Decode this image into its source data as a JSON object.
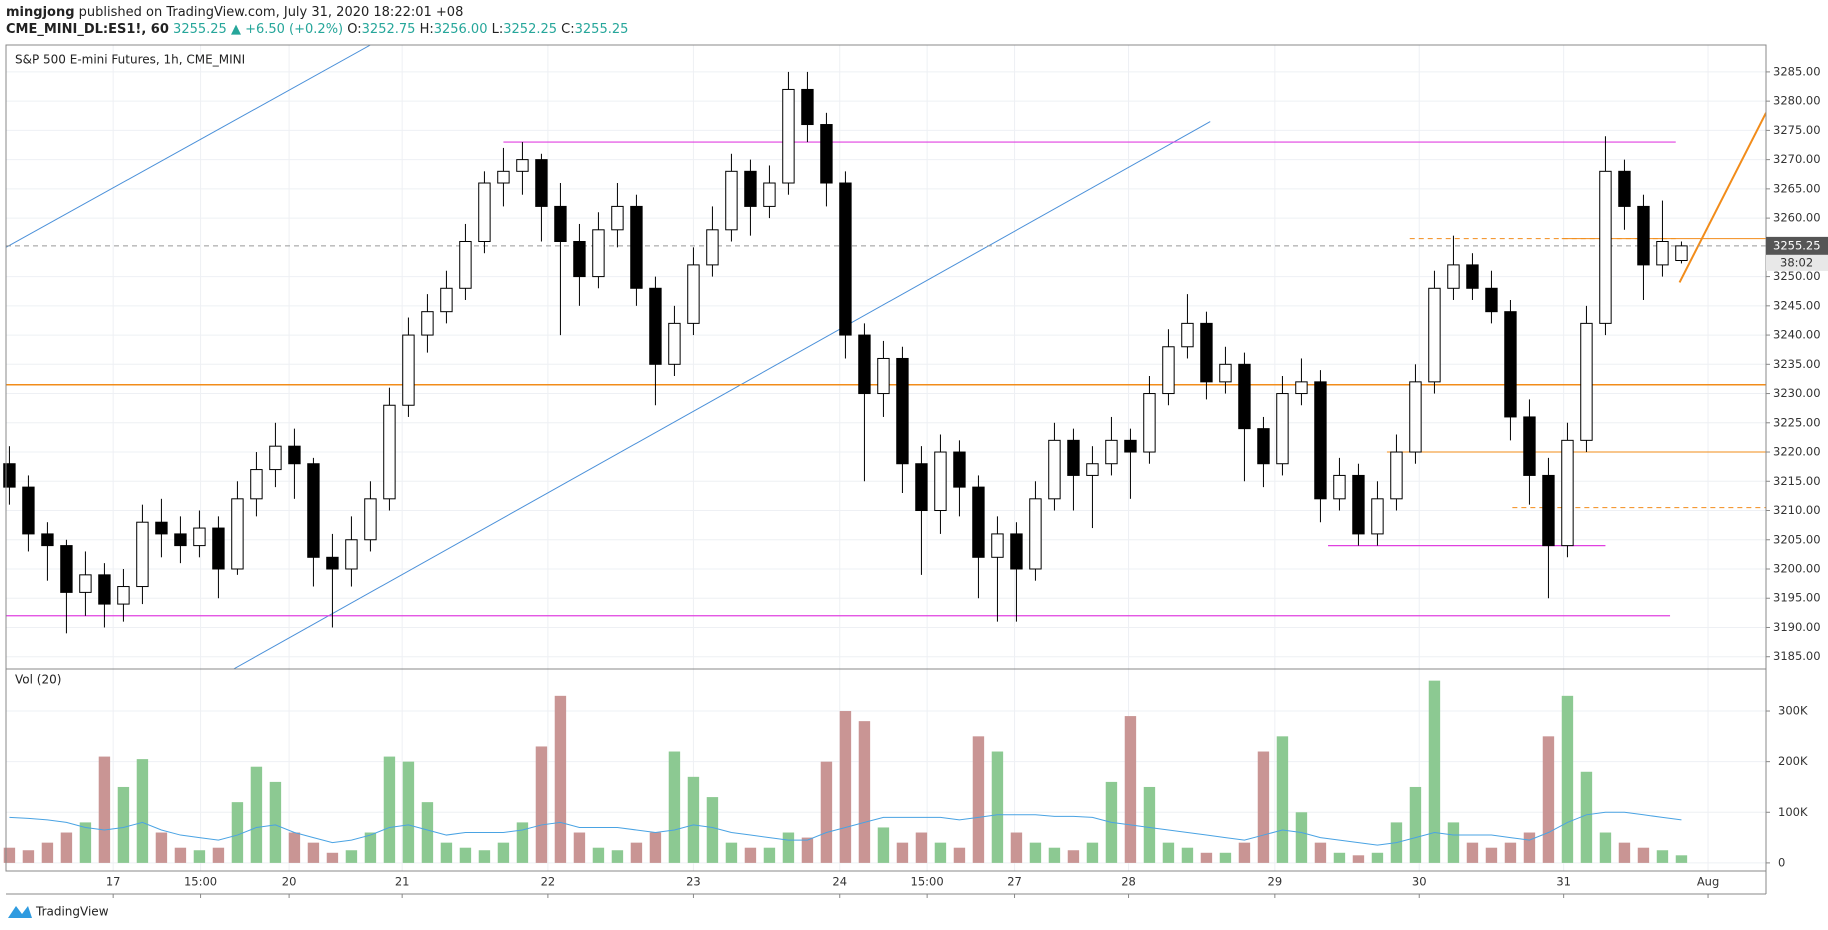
{
  "header": {
    "author": "mingjong",
    "published": "published on TradingView.com, July 31, 2020 18:22:01 +08",
    "symbol": "CME_MINI_DL:ES1!, 60",
    "last": "3255.25",
    "change": "▲ +6.50 (+0.2%)",
    "ohlc": [
      {
        "label": "O:",
        "value": "3252.75"
      },
      {
        "label": "H:",
        "value": "3256.00"
      },
      {
        "label": "L:",
        "value": "3252.25"
      },
      {
        "label": "C:",
        "value": "3255.25"
      }
    ]
  },
  "footer": {
    "brand": "TradingView"
  },
  "chart_data": {
    "type": "candlestick",
    "title": "S&P 500 E-mini Futures, 1h, CME_MINI",
    "up_color": "#ffffff",
    "down_color": "#000000",
    "volume_label": "Vol (20)",
    "volume_up_color": "#8cc992",
    "volume_down_color": "#c99594",
    "volume_ma_color": "#4aa3e3",
    "grid": true,
    "xlim": [
      -0.18,
      92.45
    ],
    "xticks": [
      {
        "value": 5.46,
        "label": "17"
      },
      {
        "value": 10.06,
        "label": "15:00"
      },
      {
        "value": 14.72,
        "label": "20"
      },
      {
        "value": 20.67,
        "label": "21"
      },
      {
        "value": 28.34,
        "label": "22"
      },
      {
        "value": 36.0,
        "label": "23"
      },
      {
        "value": 43.7,
        "label": "24"
      },
      {
        "value": 48.3,
        "label": "15:00"
      },
      {
        "value": 52.9,
        "label": "27"
      },
      {
        "value": 58.9,
        "label": "28"
      },
      {
        "value": 66.6,
        "label": "29"
      },
      {
        "value": 74.2,
        "label": "30"
      },
      {
        "value": 81.8,
        "label": "31"
      },
      {
        "value": 89.4,
        "label": "Aug"
      }
    ],
    "ylim": [
      3182.9,
      3289.6
    ],
    "yticks": [
      {
        "value": 3185,
        "label": "3185.00"
      },
      {
        "value": 3190,
        "label": "3190.00"
      },
      {
        "value": 3195,
        "label": "3195.00"
      },
      {
        "value": 3200,
        "label": "3200.00"
      },
      {
        "value": 3205,
        "label": "3205.00"
      },
      {
        "value": 3210,
        "label": "3210.00"
      },
      {
        "value": 3215,
        "label": "3215.00"
      },
      {
        "value": 3220,
        "label": "3220.00"
      },
      {
        "value": 3225,
        "label": "3225.00"
      },
      {
        "value": 3230,
        "label": "3230.00"
      },
      {
        "value": 3235,
        "label": "3235.00"
      },
      {
        "value": 3240,
        "label": "3240.00"
      },
      {
        "value": 3245,
        "label": "3245.00"
      },
      {
        "value": 3250,
        "label": "3250.00"
      },
      {
        "value": 3260,
        "label": "3260.00"
      },
      {
        "value": 3265,
        "label": "3265.00"
      },
      {
        "value": 3270,
        "label": "3270.00"
      },
      {
        "value": 3275,
        "label": "3275.00"
      },
      {
        "value": 3280,
        "label": "3280.00"
      },
      {
        "value": 3285,
        "label": "3285.00"
      }
    ],
    "current_price": {
      "value": 3255.25,
      "label": "3255.25",
      "countdown": "38:02",
      "color": "#555555"
    },
    "vol_ylim": [
      -16000,
      383000
    ],
    "vol_ticks": [
      0,
      {
        "value": 100000,
        "label": "100K"
      },
      {
        "value": 200000,
        "label": "200K"
      },
      {
        "value": 300000,
        "label": "300K"
      }
    ],
    "candles": [
      [
        3218,
        3221,
        3211,
        3214
      ],
      [
        3214,
        3216,
        3203,
        3206
      ],
      [
        3206,
        3208,
        3198,
        3204
      ],
      [
        3204,
        3205,
        3189,
        3196
      ],
      [
        3196,
        3203,
        3192,
        3199
      ],
      [
        3199,
        3201,
        3190,
        3194
      ],
      [
        3194,
        3200,
        3191,
        3197
      ],
      [
        3197,
        3211,
        3194,
        3208
      ],
      [
        3208,
        3212,
        3202,
        3206
      ],
      [
        3206,
        3209,
        3201,
        3204
      ],
      [
        3204,
        3210,
        3202,
        3207
      ],
      [
        3207,
        3209,
        3195,
        3200
      ],
      [
        3200,
        3215,
        3199,
        3212
      ],
      [
        3212,
        3220,
        3209,
        3217
      ],
      [
        3217,
        3225,
        3214,
        3221
      ],
      [
        3221,
        3224,
        3212,
        3218
      ],
      [
        3218,
        3219,
        3197,
        3202
      ],
      [
        3202,
        3206,
        3190,
        3200
      ],
      [
        3200,
        3209,
        3197,
        3205
      ],
      [
        3205,
        3215,
        3203,
        3212
      ],
      [
        3212,
        3231,
        3210,
        3228
      ],
      [
        3228,
        3243,
        3226,
        3240
      ],
      [
        3240,
        3247,
        3237,
        3244
      ],
      [
        3244,
        3251,
        3242,
        3248
      ],
      [
        3248,
        3259,
        3246,
        3256
      ],
      [
        3256,
        3268,
        3254,
        3266
      ],
      [
        3266,
        3272,
        3262,
        3268
      ],
      [
        3268,
        3273,
        3264,
        3270
      ],
      [
        3270,
        3271,
        3256,
        3262
      ],
      [
        3262,
        3266,
        3240,
        3256
      ],
      [
        3256,
        3259,
        3245,
        3250
      ],
      [
        3250,
        3261,
        3248,
        3258
      ],
      [
        3258,
        3266,
        3255,
        3262
      ],
      [
        3262,
        3264,
        3245,
        3248
      ],
      [
        3248,
        3250,
        3228,
        3235
      ],
      [
        3235,
        3245,
        3233,
        3242
      ],
      [
        3242,
        3255,
        3240,
        3252
      ],
      [
        3252,
        3262,
        3250,
        3258
      ],
      [
        3258,
        3271,
        3256,
        3268
      ],
      [
        3268,
        3270,
        3257,
        3262
      ],
      [
        3262,
        3269,
        3260,
        3266
      ],
      [
        3266,
        3285,
        3264,
        3282
      ],
      [
        3282,
        3285,
        3273,
        3276
      ],
      [
        3276,
        3278,
        3262,
        3266
      ],
      [
        3266,
        3268,
        3236,
        3240
      ],
      [
        3240,
        3242,
        3215,
        3230
      ],
      [
        3230,
        3239,
        3226,
        3236
      ],
      [
        3236,
        3238,
        3213,
        3218
      ],
      [
        3218,
        3221,
        3199,
        3210
      ],
      [
        3210,
        3223,
        3206,
        3220
      ],
      [
        3220,
        3222,
        3209,
        3214
      ],
      [
        3214,
        3216,
        3195,
        3202
      ],
      [
        3202,
        3209,
        3191,
        3206
      ],
      [
        3206,
        3208,
        3191,
        3200
      ],
      [
        3200,
        3215,
        3198,
        3212
      ],
      [
        3212,
        3225,
        3210,
        3222
      ],
      [
        3222,
        3224,
        3210,
        3216
      ],
      [
        3216,
        3221,
        3207,
        3218
      ],
      [
        3218,
        3226,
        3216,
        3222
      ],
      [
        3222,
        3224,
        3212,
        3220
      ],
      [
        3220,
        3233,
        3218,
        3230
      ],
      [
        3230,
        3241,
        3228,
        3238
      ],
      [
        3238,
        3247,
        3236,
        3242
      ],
      [
        3242,
        3244,
        3229,
        3232
      ],
      [
        3232,
        3238,
        3230,
        3235
      ],
      [
        3235,
        3237,
        3215,
        3224
      ],
      [
        3224,
        3226,
        3214,
        3218
      ],
      [
        3218,
        3233,
        3216,
        3230
      ],
      [
        3230,
        3236,
        3228,
        3232
      ],
      [
        3232,
        3234,
        3208,
        3212
      ],
      [
        3212,
        3219,
        3210,
        3216
      ],
      [
        3216,
        3218,
        3204,
        3206
      ],
      [
        3206,
        3215,
        3204,
        3212
      ],
      [
        3212,
        3223,
        3210,
        3220
      ],
      [
        3220,
        3235,
        3218,
        3232
      ],
      [
        3232,
        3251,
        3230,
        3248
      ],
      [
        3248,
        3257,
        3246,
        3252
      ],
      [
        3252,
        3254,
        3246,
        3248
      ],
      [
        3248,
        3251,
        3242,
        3244
      ],
      [
        3244,
        3246,
        3222,
        3226
      ],
      [
        3226,
        3229,
        3211,
        3216
      ],
      [
        3216,
        3219,
        3195,
        3204
      ],
      [
        3204,
        3225,
        3202,
        3222
      ],
      [
        3222,
        3245,
        3220,
        3242
      ],
      [
        3242,
        3274,
        3240,
        3268
      ],
      [
        3268,
        3270,
        3258,
        3262
      ],
      [
        3262,
        3264,
        3246,
        3252
      ],
      [
        3252,
        3263,
        3250,
        3256
      ],
      [
        3252.75,
        3256,
        3252.25,
        3255.25
      ]
    ],
    "volumes": [
      30000,
      25000,
      40000,
      60000,
      80000,
      210000,
      150000,
      205000,
      60000,
      30000,
      25000,
      30000,
      120000,
      190000,
      160000,
      60000,
      40000,
      20000,
      25000,
      60000,
      210000,
      200000,
      120000,
      40000,
      30000,
      25000,
      40000,
      80000,
      230000,
      330000,
      60000,
      30000,
      25000,
      40000,
      60000,
      220000,
      170000,
      130000,
      40000,
      30000,
      30000,
      60000,
      50000,
      200000,
      300000,
      280000,
      70000,
      40000,
      60000,
      40000,
      30000,
      250000,
      220000,
      60000,
      40000,
      30000,
      25000,
      40000,
      160000,
      290000,
      150000,
      40000,
      30000,
      20000,
      20000,
      40000,
      220000,
      250000,
      100000,
      40000,
      20000,
      15000,
      20000,
      80000,
      150000,
      360000,
      80000,
      40000,
      30000,
      40000,
      60000,
      250000,
      330000,
      180000,
      60000,
      40000,
      30000,
      25000,
      15000
    ],
    "volume_ma": [
      90000,
      88000,
      85000,
      80000,
      70000,
      65000,
      70000,
      80000,
      65000,
      55000,
      50000,
      45000,
      55000,
      70000,
      75000,
      60000,
      50000,
      40000,
      45000,
      55000,
      70000,
      75000,
      65000,
      55000,
      60000,
      60000,
      60000,
      65000,
      75000,
      80000,
      70000,
      70000,
      70000,
      65000,
      60000,
      65000,
      75000,
      70000,
      60000,
      55000,
      50000,
      45000,
      45000,
      60000,
      70000,
      80000,
      90000,
      90000,
      90000,
      90000,
      85000,
      90000,
      95000,
      95000,
      95000,
      92000,
      92000,
      90000,
      80000,
      75000,
      70000,
      65000,
      60000,
      55000,
      50000,
      45000,
      55000,
      65000,
      60000,
      50000,
      45000,
      40000,
      35000,
      40000,
      50000,
      60000,
      55000,
      55000,
      55000,
      50000,
      45000,
      60000,
      80000,
      95000,
      100000,
      100000,
      95000,
      90000,
      85000
    ],
    "drawings": [
      {
        "x": [
          -0.18,
          19.0
        ],
        "y": [
          3255.0,
          3289.6
        ],
        "color": "#4a90d9",
        "width": 1,
        "dash": false
      },
      {
        "x": [
          11.8,
          63.2
        ],
        "y": [
          3182.9,
          3276.5
        ],
        "color": "#4a90d9",
        "width": 1,
        "dash": false
      },
      {
        "x": [
          -0.18,
          92.45
        ],
        "y": [
          3231.5,
          3231.5
        ],
        "color": "#f28c1a",
        "width": 1.5,
        "dash": false
      },
      {
        "x": [
          26.0,
          87.7
        ],
        "y": [
          3273,
          3273
        ],
        "color": "#e040e0",
        "width": 1.2,
        "dash": false
      },
      {
        "x": [
          -0.18,
          87.4
        ],
        "y": [
          3192,
          3192
        ],
        "color": "#e040e0",
        "width": 1.2,
        "dash": false
      },
      {
        "x": [
          69.4,
          84.0
        ],
        "y": [
          3204,
          3204
        ],
        "color": "#e040e0",
        "width": 1.2,
        "dash": false
      },
      {
        "x": [
          72.5,
          92.45
        ],
        "y": [
          3220,
          3220
        ],
        "color": "#f28c1a",
        "width": 1,
        "dash": false
      },
      {
        "x": [
          79.1,
          92.45
        ],
        "y": [
          3210.5,
          3210.5
        ],
        "color": "#f28c1a",
        "width": 1,
        "dash": true
      },
      {
        "x": [
          73.7,
          87.9
        ],
        "y": [
          3256.5,
          3256.5
        ],
        "color": "#f28c1a",
        "width": 1,
        "dash": true
      },
      {
        "x": [
          81.7,
          92.45
        ],
        "y": [
          3256.5,
          3256.5
        ],
        "color": "#f28c1a",
        "width": 1,
        "dash": false
      },
      {
        "x": [
          87.9,
          92.45
        ],
        "y": [
          3249,
          3278
        ],
        "color": "#f28c1a",
        "width": 2,
        "dash": false
      },
      {
        "x": [
          -0.18,
          92.45
        ],
        "y": [
          3255.25,
          3255.25
        ],
        "color": "#999999",
        "width": 1,
        "dash": true
      }
    ]
  }
}
